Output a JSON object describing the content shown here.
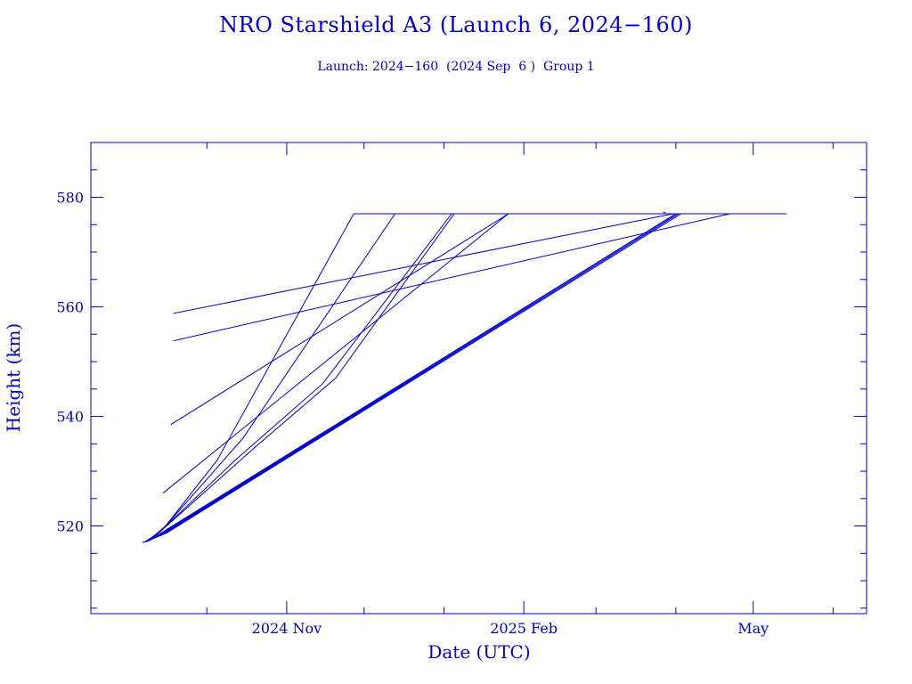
{
  "chart_data": {
    "type": "line",
    "title": "NRO Starshield A3 (Launch 6, 2024−160)",
    "subtitle": "Launch: 2024−160  (2024 Sep  6 )  Group 1",
    "xlabel": "Date (UTC)",
    "ylabel": "Height (km)",
    "xlim": [
      "2024-08-17",
      "2025-06-14"
    ],
    "ylim": [
      504,
      590
    ],
    "x_ticks": [
      {
        "date": "2024-11-01",
        "label": "2024 Nov"
      },
      {
        "date": "2025-02-01",
        "label": "2025 Feb"
      },
      {
        "date": "2025-05-01",
        "label": "May"
      }
    ],
    "x_minor_ticks": [
      "2024-10-01",
      "2024-12-01",
      "2025-01-01",
      "2025-03-01",
      "2025-04-01",
      "2025-06-01"
    ],
    "y_ticks": [
      520,
      540,
      560,
      580
    ],
    "y_minor_step": 5,
    "grid": false,
    "legend": "none",
    "color": "#0000c8",
    "series": [
      {
        "x": [
          "2024-09-06",
          "2024-09-08",
          "2024-09-15",
          "2024-10-05",
          "2024-11-27"
        ],
        "y": [
          517,
          517.2,
          520,
          532,
          577
        ]
      },
      {
        "x": [
          "2024-09-06",
          "2024-09-09",
          "2024-09-15",
          "2024-10-15",
          "2024-12-13"
        ],
        "y": [
          517,
          517.4,
          520,
          536,
          577
        ]
      },
      {
        "x": [
          "2024-09-07",
          "2024-09-12",
          "2024-10-12",
          "2024-11-15",
          "2025-01-04"
        ],
        "y": [
          517.1,
          518.6,
          532,
          546,
          577
        ]
      },
      {
        "x": [
          "2024-09-07",
          "2024-09-13",
          "2024-10-20",
          "2024-11-20",
          "2025-01-05"
        ],
        "y": [
          517.1,
          519,
          534.5,
          547,
          577
        ]
      },
      {
        "x": [
          "2024-09-08",
          "2025-03-31",
          "2025-04-01"
        ],
        "y": [
          517.2,
          576.7,
          577
        ]
      },
      {
        "x": [
          "2024-09-09",
          "2025-03-31",
          "2025-04-01"
        ],
        "y": [
          517.4,
          576.7,
          577
        ]
      },
      {
        "x": [
          "2024-09-10",
          "2025-03-31",
          "2025-04-01"
        ],
        "y": [
          517.6,
          576.7,
          577
        ]
      },
      {
        "x": [
          "2024-09-11",
          "2025-04-01"
        ],
        "y": [
          517.8,
          577
        ]
      },
      {
        "x": [
          "2024-09-12",
          "2025-04-02"
        ],
        "y": [
          518,
          577
        ]
      },
      {
        "x": [
          "2024-09-13",
          "2025-04-02"
        ],
        "y": [
          518.2,
          577
        ]
      },
      {
        "x": [
          "2024-09-14",
          "2025-04-02"
        ],
        "y": [
          518.4,
          577
        ]
      },
      {
        "x": [
          "2024-09-15",
          "2025-04-03"
        ],
        "y": [
          518.6,
          577
        ]
      },
      {
        "x": [
          "2024-09-17",
          "2025-01-26"
        ],
        "y": [
          538.5,
          577
        ]
      },
      {
        "x": [
          "2024-09-14",
          "2025-01-26"
        ],
        "y": [
          526,
          577
        ]
      },
      {
        "x": [
          "2024-09-18",
          "2025-03-31"
        ],
        "y": [
          558.8,
          577
        ]
      },
      {
        "x": [
          "2024-09-18",
          "2025-04-22"
        ],
        "y": [
          553.8,
          577
        ]
      },
      {
        "x": [
          "2024-11-27",
          "2025-05-14"
        ],
        "y": [
          577,
          577
        ]
      },
      {
        "x": [
          "2025-03-27",
          "2025-03-28"
        ],
        "y": [
          577.3,
          577.2
        ]
      }
    ]
  }
}
